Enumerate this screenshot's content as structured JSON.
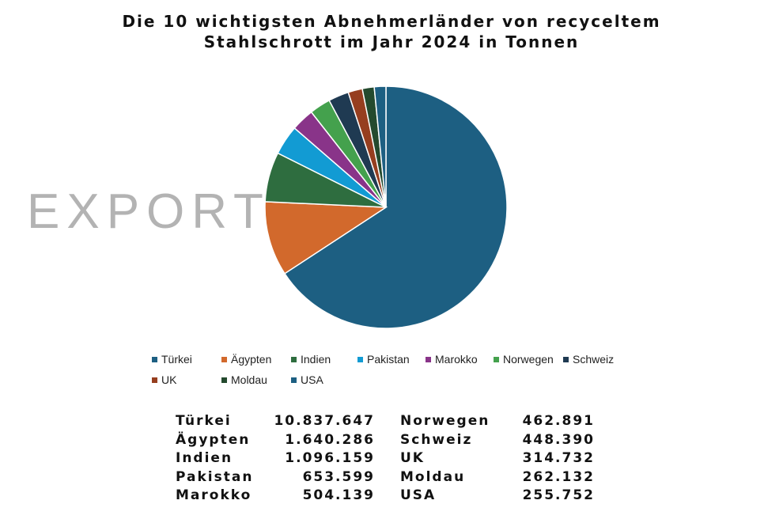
{
  "watermark": "EXPORT",
  "colors": {
    "Türkei": "#1d5f82",
    "Ägypten": "#d2692c",
    "Indien": "#2e6d3f",
    "Pakistan": "#129bd3",
    "Marokko": "#893489",
    "Norwegen": "#44a14d",
    "Schweiz": "#1f3a52",
    "UK": "#963e1f",
    "Moldau": "#244a2e",
    "USA": "#1d5f82"
  },
  "chart_data": {
    "type": "pie",
    "title": [
      "Die 10 wichtigsten Abnehmerländer von recyceltem",
      "Stahlschrott im Jahr 2024 in Tonnen"
    ],
    "categories": [
      "Türkei",
      "Ägypten",
      "Indien",
      "Pakistan",
      "Marokko",
      "Norwegen",
      "Schweiz",
      "UK",
      "Moldau",
      "USA"
    ],
    "values": [
      10837647,
      1640286,
      1096159,
      653599,
      504139,
      462891,
      448390,
      314732,
      262132,
      255752
    ],
    "value_labels": [
      "10.837.647",
      "1.640.286",
      "1.096.159",
      "653.599",
      "504.139",
      "462.891",
      "448.390",
      "314.732",
      "262.132",
      "255.752"
    ],
    "legend_position": "bottom"
  }
}
